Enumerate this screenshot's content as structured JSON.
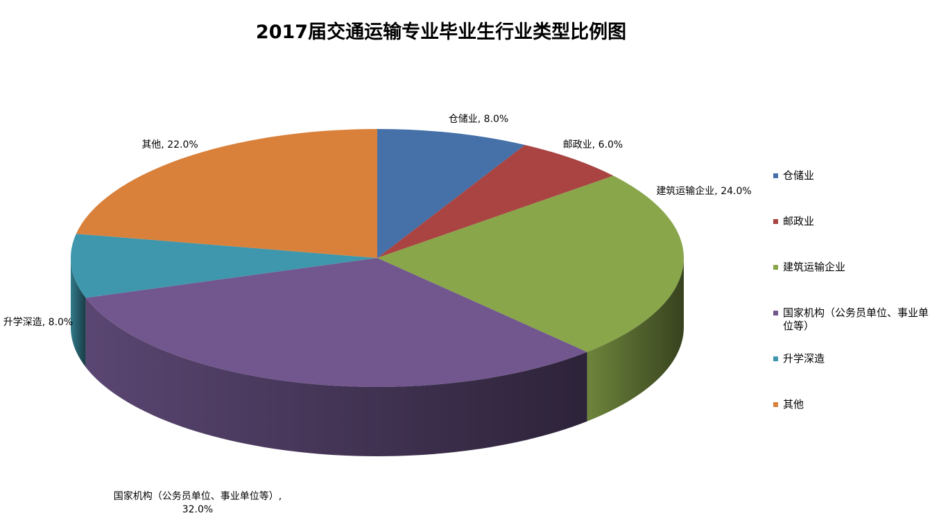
{
  "chart_data": {
    "type": "pie",
    "title": "2017届交通运输专业毕业生行业类型比例图",
    "categories": [
      "仓储业",
      "邮政业",
      "建筑运输企业",
      "国家机构（公务员单位、事业单位等）",
      "升学深造",
      "其他"
    ],
    "values": [
      8,
      6,
      24,
      32,
      8,
      22
    ],
    "value_labels": [
      "仓储业, 8.0%",
      "邮政业, 6.0%",
      "建筑运输企业, 24.0%",
      "国家机构（公务员单位、事业单位等）, 32.0%",
      "升学深造, 8.0%",
      "其他, 22.0%"
    ],
    "colors": [
      "#4570a8",
      "#a94442",
      "#89a64b",
      "#71578e",
      "#3f97ad",
      "#d9813b"
    ],
    "legend": "right"
  }
}
